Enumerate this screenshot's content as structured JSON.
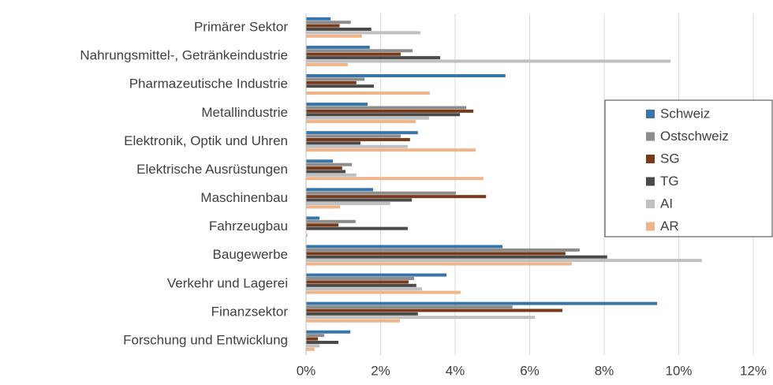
{
  "chart_data": {
    "type": "hbar",
    "categories": [
      "Primärer Sektor",
      "Nahrungsmittel-, Getränkeindustrie",
      "Pharmazeutische Industrie",
      "Metallindustrie",
      "Elektronik, Optik und Uhren",
      "Elektrische Ausrüstungen",
      "Maschinenbau",
      "Fahrzeugbau",
      "Baugewerbe",
      "Verkehr und Lagerei",
      "Finanzsektor",
      "Forschung und Entwicklung"
    ],
    "series": [
      {
        "name": "Schweiz",
        "color": "#3a75a8",
        "values": [
          0.66,
          1.71,
          5.35,
          1.65,
          3.0,
          0.72,
          1.8,
          0.36,
          5.27,
          3.77,
          9.42,
          1.19
        ]
      },
      {
        "name": "Ostschweiz",
        "color": "#8c8c8c",
        "values": [
          1.2,
          2.86,
          1.57,
          4.3,
          2.54,
          1.23,
          4.02,
          1.33,
          7.34,
          2.9,
          5.54,
          0.49
        ]
      },
      {
        "name": "SG",
        "color": "#7a3b1a",
        "values": [
          0.9,
          2.54,
          1.35,
          4.49,
          2.79,
          0.97,
          4.83,
          0.87,
          6.96,
          2.75,
          6.88,
          0.32
        ]
      },
      {
        "name": "TG",
        "color": "#4a4a4a",
        "values": [
          1.75,
          3.6,
          1.82,
          4.13,
          1.46,
          1.06,
          2.84,
          2.73,
          8.08,
          2.96,
          3.0,
          0.87
        ]
      },
      {
        "name": "AI",
        "color": "#c0c0c0",
        "values": [
          3.07,
          9.78,
          0,
          3.3,
          2.73,
          1.35,
          2.26,
          0,
          10.62,
          3.11,
          6.14,
          0.36
        ]
      },
      {
        "name": "AR",
        "color": "#f0b48a",
        "values": [
          1.5,
          1.12,
          3.32,
          2.94,
          4.55,
          4.76,
          0.91,
          0.04,
          7.13,
          4.15,
          2.52,
          0.23
        ]
      }
    ],
    "xlim": [
      0,
      12
    ],
    "xticks": [
      {
        "value": 0,
        "label": "0%"
      },
      {
        "value": 2,
        "label": "2%"
      },
      {
        "value": 4,
        "label": "4%"
      },
      {
        "value": 6,
        "label": "6%"
      },
      {
        "value": 8,
        "label": "8%"
      },
      {
        "value": 10,
        "label": "10%"
      },
      {
        "value": 12,
        "label": "12%"
      }
    ],
    "grid": true,
    "legend": "right"
  }
}
